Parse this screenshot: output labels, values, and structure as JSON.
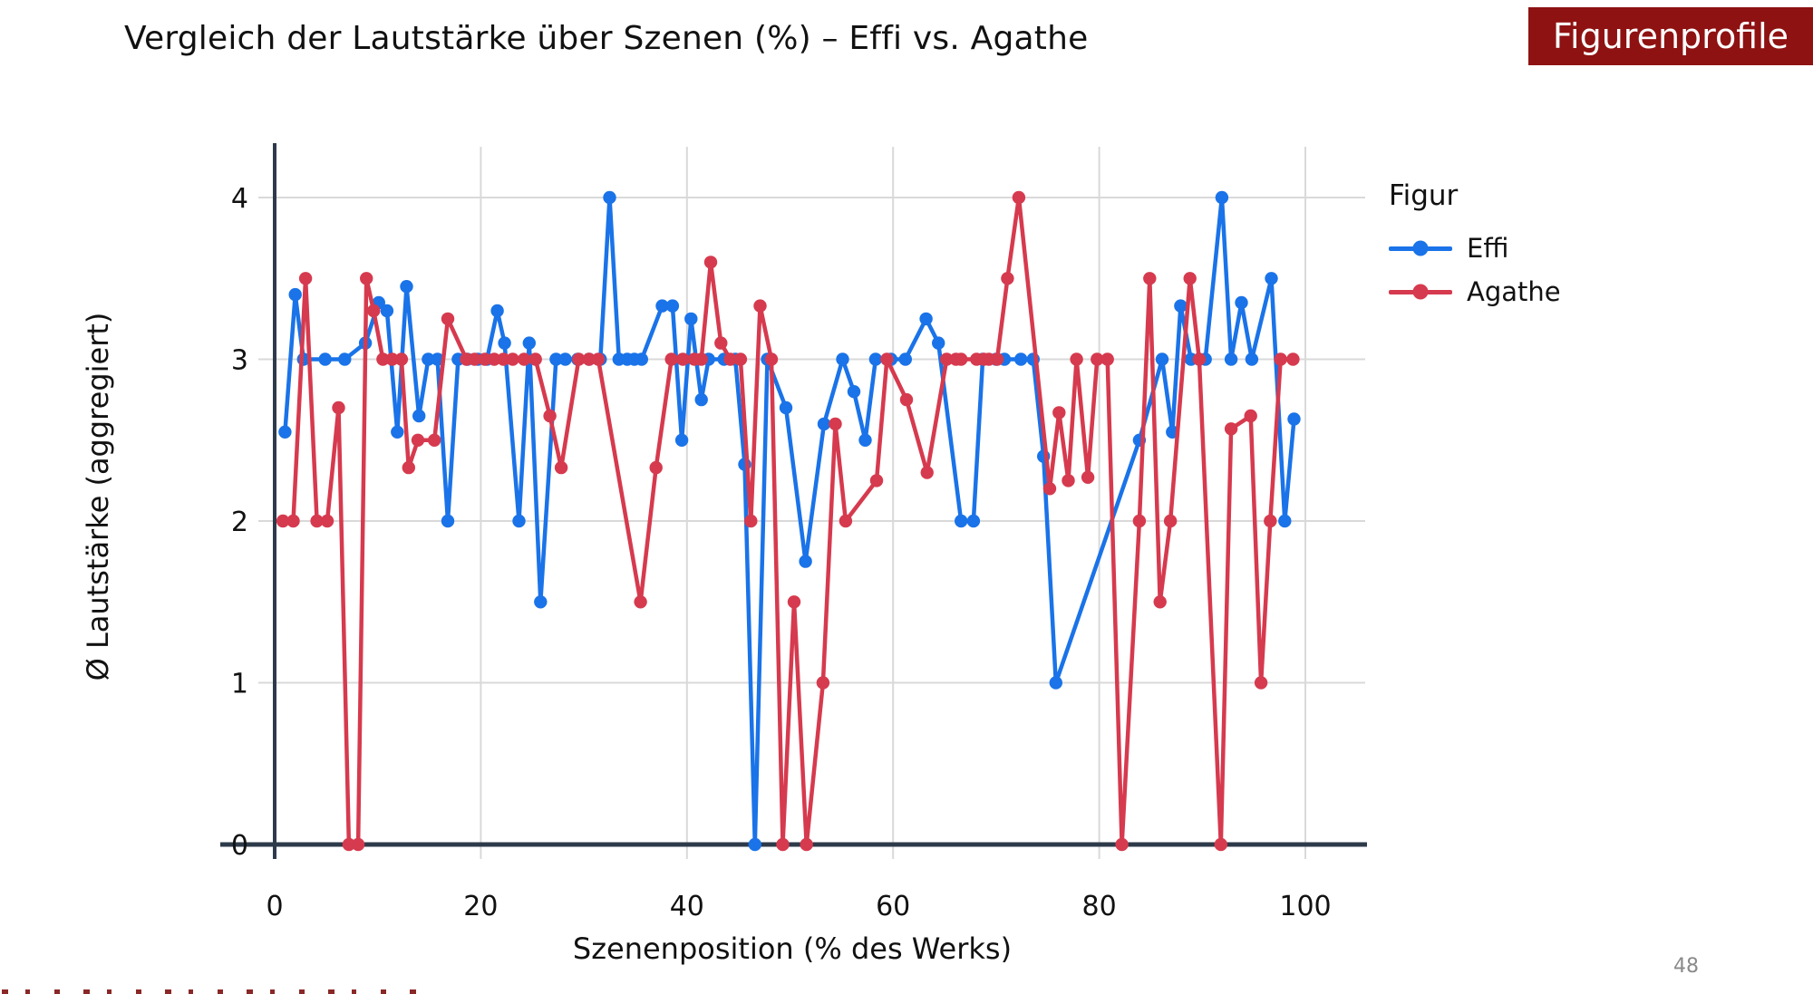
{
  "slide": {
    "title": "Vergleich der Lautstärke über Szenen (%) – Effi vs. Agathe",
    "badge": "Figurenprofile",
    "page_number": "48"
  },
  "chart_data": {
    "type": "line",
    "xlabel": "Szenenposition (% des Werks)",
    "ylabel": "Ø Lautstärke (aggregiert)",
    "x_ticks": [
      0,
      20,
      40,
      60,
      80,
      100
    ],
    "y_ticks": [
      0,
      1,
      2,
      3,
      4
    ],
    "xlim": [
      0,
      105.8
    ],
    "ylim": [
      0,
      4.31
    ],
    "grid": true,
    "legend_title": "Figur",
    "legend_position": "right",
    "axis_color": "#2d3a4a",
    "grid_color": "#d9d9d9",
    "series": [
      {
        "name": "Effi",
        "color": "#1a73e8",
        "points": [
          [
            1,
            2.55
          ],
          [
            2,
            3.4
          ],
          [
            2.8,
            3
          ],
          [
            4.9,
            3
          ],
          [
            6.8,
            3
          ],
          [
            8.8,
            3.1
          ],
          [
            10.1,
            3.35
          ],
          [
            10.9,
            3.3
          ],
          [
            11.9,
            2.55
          ],
          [
            12.8,
            3.45
          ],
          [
            14,
            2.65
          ],
          [
            14.9,
            3
          ],
          [
            15.8,
            3
          ],
          [
            16.8,
            2
          ],
          [
            17.8,
            3
          ],
          [
            18.7,
            3
          ],
          [
            19.7,
            3
          ],
          [
            20.6,
            3
          ],
          [
            21.6,
            3.3
          ],
          [
            22.3,
            3.1
          ],
          [
            23.7,
            2
          ],
          [
            24.7,
            3.1
          ],
          [
            25.8,
            1.5
          ],
          [
            27.3,
            3
          ],
          [
            28.2,
            3
          ],
          [
            29.4,
            3
          ],
          [
            30.5,
            3
          ],
          [
            31.6,
            3
          ],
          [
            32.5,
            4
          ],
          [
            33.4,
            3
          ],
          [
            34.2,
            3
          ],
          [
            34.9,
            3
          ],
          [
            35.6,
            3
          ],
          [
            37.6,
            3.33
          ],
          [
            38.6,
            3.33
          ],
          [
            39.5,
            2.5
          ],
          [
            40.4,
            3.25
          ],
          [
            41.4,
            2.75
          ],
          [
            42.1,
            3
          ],
          [
            43.6,
            3
          ],
          [
            44.7,
            3
          ],
          [
            45.6,
            2.35
          ],
          [
            46.6,
            0
          ],
          [
            47.8,
            3
          ],
          [
            49.6,
            2.7
          ],
          [
            51.5,
            1.75
          ],
          [
            53.3,
            2.6
          ],
          [
            55.1,
            3
          ],
          [
            56.2,
            2.8
          ],
          [
            57.3,
            2.5
          ],
          [
            58.3,
            3
          ],
          [
            59.8,
            3
          ],
          [
            61.2,
            3
          ],
          [
            63.2,
            3.25
          ],
          [
            64.4,
            3.1
          ],
          [
            66.6,
            2
          ],
          [
            67.8,
            2
          ],
          [
            68.7,
            3
          ],
          [
            70,
            3
          ],
          [
            70.8,
            3
          ],
          [
            72.4,
            3
          ],
          [
            73.6,
            3
          ],
          [
            74.6,
            2.4
          ],
          [
            75.8,
            1
          ],
          [
            83.9,
            2.5
          ],
          [
            86.1,
            3
          ],
          [
            87.1,
            2.55
          ],
          [
            87.9,
            3.33
          ],
          [
            88.9,
            3
          ],
          [
            90.3,
            3
          ],
          [
            91.9,
            4
          ],
          [
            92.8,
            3
          ],
          [
            93.8,
            3.35
          ],
          [
            94.8,
            3
          ],
          [
            96.7,
            3.5
          ],
          [
            98,
            2
          ],
          [
            98.9,
            2.63
          ]
        ]
      },
      {
        "name": "Agathe",
        "color": "#d63a4e",
        "points": [
          [
            0.8,
            2
          ],
          [
            1.8,
            2
          ],
          [
            3,
            3.5
          ],
          [
            4.1,
            2
          ],
          [
            5.1,
            2
          ],
          [
            6.2,
            2.7
          ],
          [
            7.2,
            0
          ],
          [
            8.1,
            0
          ],
          [
            8.9,
            3.5
          ],
          [
            9.6,
            3.3
          ],
          [
            10.5,
            3
          ],
          [
            11.4,
            3
          ],
          [
            12.3,
            3
          ],
          [
            13,
            2.33
          ],
          [
            13.9,
            2.5
          ],
          [
            15.5,
            2.5
          ],
          [
            16.8,
            3.25
          ],
          [
            18.6,
            3
          ],
          [
            19.4,
            3
          ],
          [
            20.4,
            3
          ],
          [
            21.3,
            3
          ],
          [
            22.2,
            3
          ],
          [
            23.1,
            3
          ],
          [
            24.2,
            3
          ],
          [
            25.3,
            3
          ],
          [
            26.7,
            2.65
          ],
          [
            27.8,
            2.33
          ],
          [
            29.5,
            3
          ],
          [
            30.5,
            3
          ],
          [
            31.4,
            3
          ],
          [
            35.5,
            1.5
          ],
          [
            37,
            2.33
          ],
          [
            38.5,
            3
          ],
          [
            39.6,
            3
          ],
          [
            40.7,
            3
          ],
          [
            41.4,
            3
          ],
          [
            42.3,
            3.6
          ],
          [
            43.3,
            3.1
          ],
          [
            44.2,
            3
          ],
          [
            45.2,
            3
          ],
          [
            46.2,
            2
          ],
          [
            47.1,
            3.33
          ],
          [
            48.2,
            3
          ],
          [
            49.3,
            0
          ],
          [
            50.4,
            1.5
          ],
          [
            51.6,
            0
          ],
          [
            53.2,
            1
          ],
          [
            54.4,
            2.6
          ],
          [
            55.4,
            2
          ],
          [
            58.4,
            2.25
          ],
          [
            59.4,
            3
          ],
          [
            61.3,
            2.75
          ],
          [
            63.3,
            2.3
          ],
          [
            65.2,
            3
          ],
          [
            66.1,
            3
          ],
          [
            66.6,
            3
          ],
          [
            68.1,
            3
          ],
          [
            68.8,
            3
          ],
          [
            69.3,
            3
          ],
          [
            70.1,
            3
          ],
          [
            71.1,
            3.5
          ],
          [
            72.2,
            4
          ],
          [
            75.2,
            2.2
          ],
          [
            76.1,
            2.67
          ],
          [
            77,
            2.25
          ],
          [
            77.8,
            3
          ],
          [
            78.9,
            2.27
          ],
          [
            79.8,
            3
          ],
          [
            80.8,
            3
          ],
          [
            82.2,
            0
          ],
          [
            83.9,
            2
          ],
          [
            84.9,
            3.5
          ],
          [
            85.9,
            1.5
          ],
          [
            86.9,
            2
          ],
          [
            88.8,
            3.5
          ],
          [
            89.7,
            3
          ],
          [
            91.8,
            0
          ],
          [
            92.8,
            2.57
          ],
          [
            94.7,
            2.65
          ],
          [
            95.7,
            1
          ],
          [
            96.6,
            2
          ],
          [
            97.6,
            3
          ],
          [
            98.8,
            3
          ]
        ]
      }
    ]
  }
}
